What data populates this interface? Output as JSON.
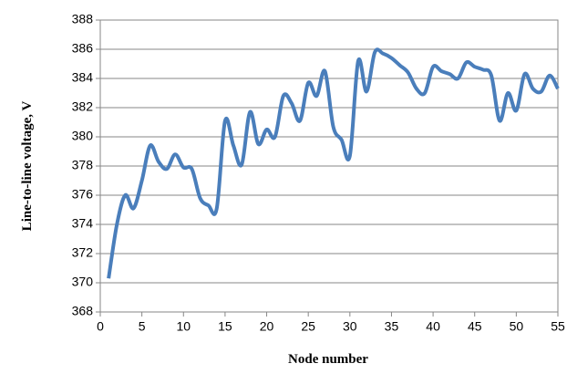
{
  "chart_data": {
    "type": "line",
    "x_label": "Node number",
    "y_label": "Line-to-line voltage, V",
    "x": [
      1,
      2,
      3,
      4,
      5,
      6,
      7,
      8,
      9,
      10,
      11,
      12,
      13,
      14,
      15,
      16,
      17,
      18,
      19,
      20,
      21,
      22,
      23,
      24,
      25,
      26,
      27,
      28,
      29,
      30,
      31,
      32,
      33,
      34,
      35,
      36,
      37,
      38,
      39,
      40,
      41,
      42,
      43,
      44,
      45,
      46,
      47,
      48,
      49,
      50,
      51,
      52,
      53,
      54,
      55
    ],
    "series": [
      {
        "color": "#4a7ebb",
        "values": [
          370.3,
          374,
          376,
          375.1,
          377,
          379.4,
          378.3,
          377.8,
          378.8,
          377.9,
          377.8,
          375.8,
          375.3,
          375.1,
          381.1,
          379.4,
          378.1,
          381.7,
          379.5,
          380.5,
          380.0,
          382.8,
          382.3,
          381.1,
          383.7,
          382.8,
          384.5,
          380.7,
          379.8,
          378.7,
          385.2,
          383.1,
          385.8,
          385.7,
          385.4,
          384.9,
          384.4,
          383.3,
          383.0,
          384.8,
          384.5,
          384.3,
          384.0,
          385.1,
          384.8,
          384.6,
          384.2,
          381.1,
          383.0,
          381.8,
          384.3,
          383.3,
          383.1,
          384.2,
          383.3
        ]
      }
    ],
    "xlim": [
      0,
      55
    ],
    "xticks": [
      0,
      5,
      10,
      15,
      20,
      25,
      30,
      35,
      40,
      45,
      50,
      55
    ],
    "ylim": [
      368,
      388
    ],
    "yticks": [
      368,
      370,
      372,
      374,
      376,
      378,
      380,
      382,
      384,
      386,
      388
    ],
    "grid": true
  }
}
